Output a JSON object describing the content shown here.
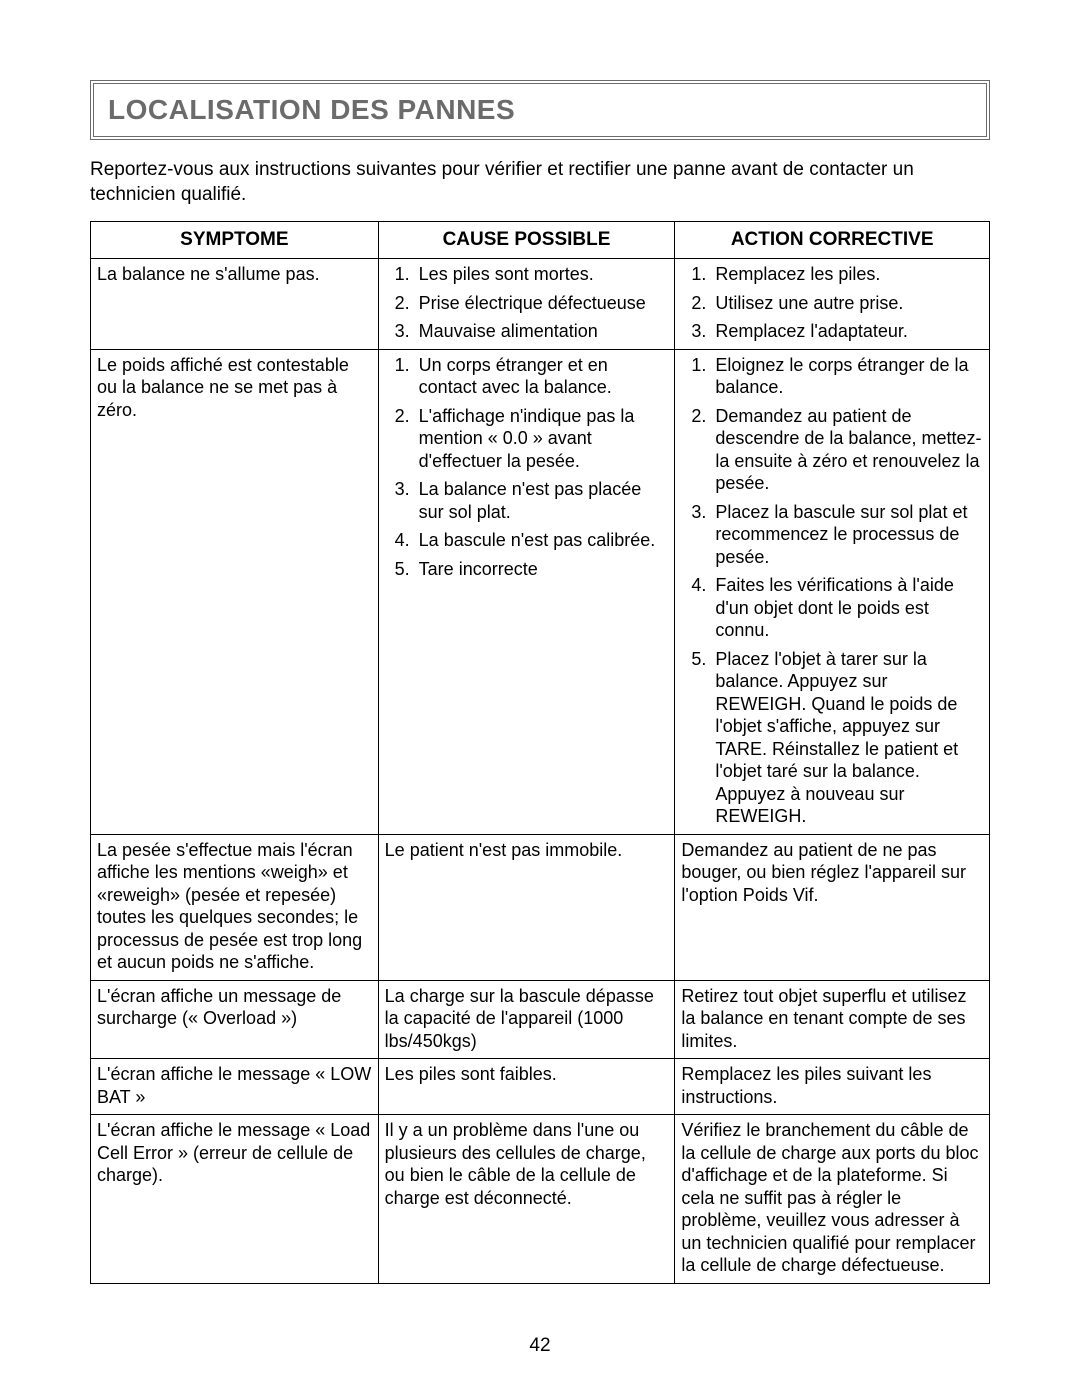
{
  "page": {
    "title": "LOCALISATION DES PANNES",
    "intro": "Reportez-vous aux instructions suivantes pour vérifier et rectifier une panne avant de contacter un technicien qualifié.",
    "page_number": "42",
    "headers": {
      "symptom": "SYMPTOME",
      "cause": "CAUSE POSSIBLE",
      "action": "ACTION CORRECTIVE"
    },
    "rows": [
      {
        "symptom": "La balance ne s'allume pas.",
        "causes": [
          "Les piles sont mortes.",
          "Prise électrique défectueuse",
          "Mauvaise alimentation"
        ],
        "actions": [
          "Remplacez les piles.",
          "Utilisez une autre prise.",
          "Remplacez l'adaptateur."
        ]
      },
      {
        "symptom": "Le poids affiché est contestable ou la balance ne se met pas à zéro.",
        "causes": [
          "Un corps étranger et en contact avec la balance.",
          "L'affichage n'indique pas la mention « 0.0 » avant d'effectuer la pesée.",
          "La balance n'est pas placée sur sol plat.",
          "La bascule n'est pas calibrée.",
          "Tare incorrecte"
        ],
        "actions": [
          "Eloignez le corps étranger de la balance.",
          "Demandez au patient de descendre de la balance, mettez-la ensuite à zéro et renouvelez la pesée.",
          "Placez la bascule sur sol plat et recommencez le processus de pesée.",
          "Faites les vérifications à l'aide d'un objet dont le poids est connu.",
          "Placez l'objet à tarer sur la balance. Appuyez sur REWEIGH. Quand le poids de l'objet s'affiche, appuyez sur TARE. Réinstallez le patient et l'objet taré sur la balance. Appuyez à nouveau sur REWEIGH."
        ]
      },
      {
        "symptom": "La pesée s'effectue mais l'écran affiche les mentions «weigh» et «reweigh» (pesée et repesée) toutes les quelques secondes; le processus de pesée est trop long et aucun poids ne s'affiche.",
        "cause_text": "Le patient n'est pas immobile.",
        "action_text": "Demandez au patient de ne pas bouger, ou bien réglez l'appareil sur l'option Poids Vif."
      },
      {
        "symptom": "L'écran affiche un message de surcharge (« Overload »)",
        "cause_text": "La charge sur la bascule dépasse la capacité de l'appareil (1000 lbs/450kgs)",
        "action_text": "Retirez tout objet superflu et utilisez la balance en tenant compte de ses limites."
      },
      {
        "symptom": "L'écran affiche le message « LOW BAT »",
        "cause_text": "Les piles sont faibles.",
        "action_text": "Remplacez les piles suivant les instructions."
      },
      {
        "symptom": "L'écran affiche le message « Load Cell Error » (erreur de cellule de charge).",
        "cause_text": "Il y a un problème dans l'une ou plusieurs des cellules de charge, ou bien le câble de la cellule de charge est déconnecté.",
        "action_text": "Vérifiez le branchement du câble de la cellule de charge aux ports du bloc d'affichage et de la plateforme. Si cela ne suffit pas à régler le problème, veuillez vous adresser à un technicien qualifié pour remplacer la cellule de charge défectueuse."
      }
    ]
  }
}
